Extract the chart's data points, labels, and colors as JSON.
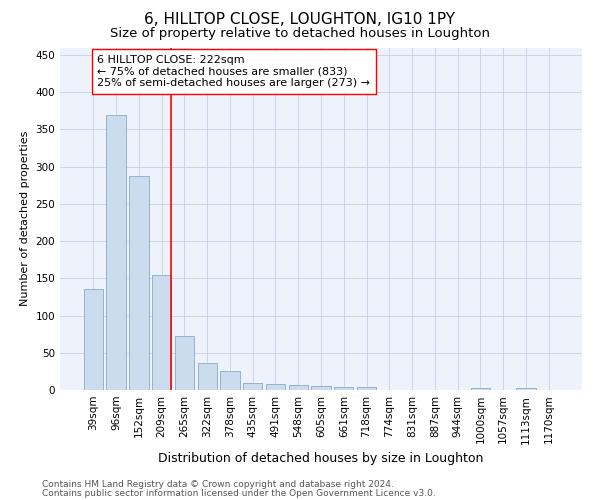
{
  "title": "6, HILLTOP CLOSE, LOUGHTON, IG10 1PY",
  "subtitle": "Size of property relative to detached houses in Loughton",
  "xlabel": "Distribution of detached houses by size in Loughton",
  "ylabel": "Number of detached properties",
  "categories": [
    "39sqm",
    "96sqm",
    "152sqm",
    "209sqm",
    "265sqm",
    "322sqm",
    "378sqm",
    "435sqm",
    "491sqm",
    "548sqm",
    "605sqm",
    "661sqm",
    "718sqm",
    "774sqm",
    "831sqm",
    "887sqm",
    "944sqm",
    "1000sqm",
    "1057sqm",
    "1113sqm",
    "1170sqm"
  ],
  "values": [
    135,
    370,
    288,
    155,
    72,
    36,
    25,
    10,
    8,
    7,
    5,
    4,
    4,
    0,
    0,
    0,
    0,
    3,
    0,
    3,
    0
  ],
  "bar_color": "#ccdcef",
  "bar_edge_color": "#88aacc",
  "vline_color": "red",
  "vline_x_index": 3,
  "annotation_text": "6 HILLTOP CLOSE: 222sqm\n← 75% of detached houses are smaller (833)\n25% of semi-detached houses are larger (273) →",
  "annotation_box_color": "white",
  "annotation_box_edge": "red",
  "ylim": [
    0,
    460
  ],
  "yticks": [
    0,
    50,
    100,
    150,
    200,
    250,
    300,
    350,
    400,
    450
  ],
  "footer1": "Contains HM Land Registry data © Crown copyright and database right 2024.",
  "footer2": "Contains public sector information licensed under the Open Government Licence v3.0.",
  "background_color": "#eef2fb",
  "grid_color": "#c8d0e8",
  "title_fontsize": 11,
  "subtitle_fontsize": 9.5,
  "tick_fontsize": 7.5,
  "ylabel_fontsize": 8,
  "xlabel_fontsize": 9,
  "annotation_fontsize": 8,
  "footer_fontsize": 6.5
}
